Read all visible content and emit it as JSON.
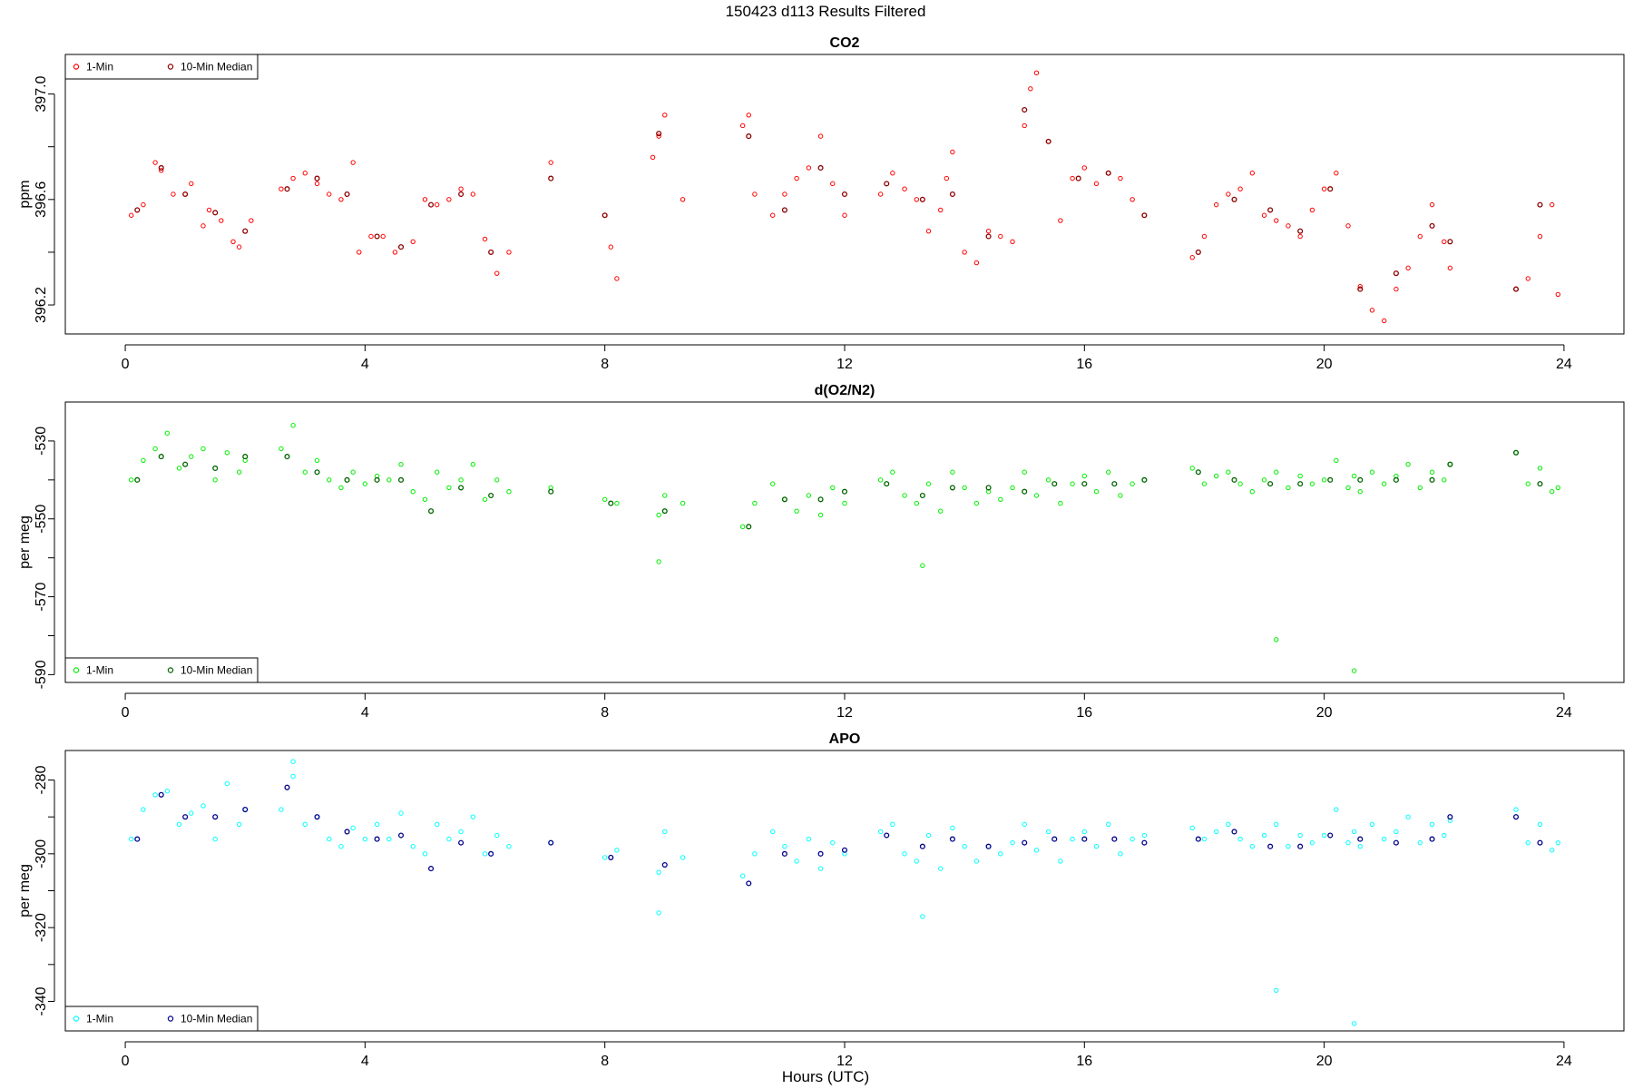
{
  "figure": {
    "title": "150423   d113   Results Filtered",
    "xlabel": "Hours (UTC)"
  },
  "chart_data": [
    {
      "type": "scatter",
      "title": "CO2",
      "ylabel": "ppm",
      "xlim": [
        -1.0,
        25.0
      ],
      "ylim": [
        396.09,
        397.15
      ],
      "xticks": [
        0,
        4,
        8,
        12,
        16,
        20,
        24
      ],
      "yticks": [
        396.2,
        396.6,
        397.0
      ],
      "ytick_labels": [
        "396.2",
        "396.6",
        "397.0"
      ],
      "legend": {
        "position": "top-left",
        "entries": [
          "1-Min",
          "10-Min Median"
        ]
      },
      "colors": {
        "one_min": "#ff0000",
        "median": "#8b0000"
      },
      "series": [
        {
          "name": "1-Min",
          "x": [
            0.1,
            0.3,
            0.5,
            0.6,
            0.8,
            1.0,
            1.1,
            1.3,
            1.4,
            1.6,
            1.8,
            1.9,
            2.1,
            2.6,
            2.8,
            3.0,
            3.2,
            3.4,
            3.6,
            3.8,
            3.9,
            4.1,
            4.3,
            4.5,
            4.8,
            5.0,
            5.2,
            5.4,
            5.6,
            5.8,
            6.0,
            6.2,
            6.4,
            7.1,
            8.0,
            8.1,
            8.2,
            8.8,
            8.9,
            9.0,
            9.3,
            10.3,
            10.4,
            10.5,
            10.8,
            11.0,
            11.2,
            11.4,
            11.6,
            11.8,
            12.0,
            12.6,
            12.8,
            13.0,
            13.2,
            13.4,
            13.6,
            13.7,
            13.8,
            14.0,
            14.2,
            14.4,
            14.6,
            14.8,
            15.0,
            15.1,
            15.2,
            15.4,
            15.6,
            15.8,
            16.0,
            16.2,
            16.4,
            16.6,
            16.8,
            17.0,
            17.8,
            18.0,
            18.2,
            18.4,
            18.6,
            18.8,
            19.0,
            19.2,
            19.4,
            19.6,
            19.8,
            20.0,
            20.2,
            20.4,
            20.6,
            20.8,
            21.0,
            21.2,
            21.4,
            21.6,
            21.8,
            22.0,
            22.1,
            23.2,
            23.4,
            23.6,
            23.8,
            23.9
          ],
          "y": [
            396.54,
            396.58,
            396.74,
            396.71,
            396.62,
            396.62,
            396.66,
            396.5,
            396.56,
            396.52,
            396.44,
            396.42,
            396.52,
            396.64,
            396.68,
            396.7,
            396.66,
            396.62,
            396.6,
            396.74,
            396.4,
            396.46,
            396.46,
            396.4,
            396.44,
            396.6,
            396.58,
            396.6,
            396.64,
            396.62,
            396.45,
            396.32,
            396.4,
            396.74,
            396.54,
            396.42,
            396.3,
            396.76,
            396.84,
            396.92,
            396.6,
            396.88,
            396.92,
            396.62,
            396.54,
            396.62,
            396.68,
            396.72,
            396.84,
            396.66,
            396.54,
            396.62,
            396.7,
            396.64,
            396.6,
            396.48,
            396.56,
            396.68,
            396.78,
            396.4,
            396.36,
            396.48,
            396.46,
            396.44,
            396.88,
            397.02,
            397.08,
            396.82,
            396.52,
            396.68,
            396.72,
            396.66,
            396.7,
            396.68,
            396.6,
            396.54,
            396.38,
            396.46,
            396.58,
            396.62,
            396.64,
            396.7,
            396.54,
            396.52,
            396.5,
            396.46,
            396.56,
            396.64,
            396.7,
            396.5,
            396.27,
            396.18,
            396.14,
            396.26,
            396.34,
            396.46,
            396.58,
            396.44,
            396.34,
            396.26,
            396.3,
            396.46,
            396.58,
            396.24
          ],
          "marker": "open-circle"
        },
        {
          "name": "10-Min Median",
          "x": [
            0.2,
            0.6,
            1.0,
            1.5,
            2.0,
            2.7,
            3.2,
            3.7,
            4.2,
            4.6,
            5.1,
            5.6,
            6.1,
            7.1,
            8.0,
            8.9,
            10.4,
            11.0,
            11.6,
            12.0,
            12.7,
            13.3,
            13.8,
            14.4,
            15.0,
            15.4,
            15.9,
            16.4,
            17.0,
            17.9,
            18.5,
            19.1,
            19.6,
            20.1,
            20.6,
            21.2,
            21.8,
            22.1,
            23.2,
            23.6
          ],
          "y": [
            396.56,
            396.72,
            396.62,
            396.55,
            396.48,
            396.64,
            396.68,
            396.62,
            396.46,
            396.42,
            396.58,
            396.62,
            396.4,
            396.68,
            396.54,
            396.85,
            396.84,
            396.56,
            396.72,
            396.62,
            396.66,
            396.6,
            396.62,
            396.46,
            396.94,
            396.82,
            396.68,
            396.7,
            396.54,
            396.4,
            396.6,
            396.56,
            396.48,
            396.64,
            396.26,
            396.32,
            396.5,
            396.44,
            396.26,
            396.58
          ],
          "marker": "open-circle"
        }
      ]
    },
    {
      "type": "scatter",
      "title": "d(O2/N2)",
      "ylabel": "per meg",
      "xlim": [
        -1.0,
        25.0
      ],
      "ylim": [
        -592.0,
        -520.0
      ],
      "xticks": [
        0,
        4,
        8,
        12,
        16,
        20,
        24
      ],
      "yticks": [
        -590,
        -570,
        -550,
        -530
      ],
      "ytick_labels": [
        "-590",
        "-570",
        "-550",
        "-530"
      ],
      "legend": {
        "position": "bottom-left",
        "entries": [
          "1-Min",
          "10-Min Median"
        ]
      },
      "colors": {
        "one_min": "#00ee00",
        "median": "#006400"
      },
      "series": [
        {
          "name": "1-Min",
          "x": [
            0.1,
            0.3,
            0.5,
            0.7,
            0.9,
            1.1,
            1.3,
            1.5,
            1.7,
            1.9,
            2.0,
            2.6,
            2.8,
            3.0,
            3.2,
            3.4,
            3.6,
            3.8,
            4.0,
            4.2,
            4.4,
            4.6,
            4.8,
            5.0,
            5.2,
            5.4,
            5.6,
            5.8,
            6.0,
            6.2,
            6.4,
            7.1,
            8.0,
            8.2,
            8.9,
            9.0,
            9.3,
            10.3,
            10.5,
            10.8,
            11.0,
            11.2,
            11.4,
            11.6,
            11.8,
            12.0,
            12.6,
            12.8,
            13.0,
            13.2,
            13.4,
            13.6,
            13.8,
            14.0,
            14.2,
            14.4,
            14.6,
            14.8,
            15.0,
            15.2,
            15.4,
            15.6,
            15.8,
            16.0,
            16.2,
            16.4,
            16.6,
            16.8,
            17.0,
            17.8,
            18.0,
            18.2,
            18.4,
            18.6,
            18.8,
            19.0,
            19.2,
            19.4,
            19.6,
            19.8,
            20.0,
            20.2,
            20.4,
            20.5,
            20.6,
            20.8,
            21.0,
            21.2,
            21.4,
            21.6,
            21.8,
            22.0,
            22.1,
            23.2,
            23.4,
            23.6,
            23.8,
            23.9,
            19.2,
            20.5,
            8.9,
            13.3,
            9.0
          ],
          "y": [
            -540,
            -535,
            -532,
            -528,
            -537,
            -534,
            -532,
            -540,
            -533,
            -538,
            -535,
            -532,
            -526,
            -538,
            -535,
            -540,
            -542,
            -538,
            -541,
            -539,
            -540,
            -536,
            -543,
            -545,
            -538,
            -542,
            -540,
            -536,
            -545,
            -540,
            -543,
            -542,
            -545,
            -546,
            -549,
            -544,
            -546,
            -552,
            -546,
            -541,
            -545,
            -548,
            -544,
            -549,
            -542,
            -546,
            -540,
            -538,
            -544,
            -546,
            -541,
            -548,
            -538,
            -542,
            -546,
            -543,
            -545,
            -542,
            -538,
            -544,
            -540,
            -546,
            -541,
            -539,
            -543,
            -538,
            -544,
            -541,
            -540,
            -537,
            -541,
            -539,
            -538,
            -541,
            -543,
            -540,
            -538,
            -542,
            -539,
            -541,
            -540,
            -535,
            -542,
            -539,
            -543,
            -538,
            -541,
            -539,
            -536,
            -542,
            -538,
            -540,
            -536,
            -533,
            -541,
            -537,
            -543,
            -542,
            -581,
            -589,
            -561,
            -562,
            -548
          ],
          "marker": "open-circle"
        },
        {
          "name": "10-Min Median",
          "x": [
            0.2,
            0.6,
            1.0,
            1.5,
            2.0,
            2.7,
            3.2,
            3.7,
            4.2,
            4.6,
            5.1,
            5.6,
            6.1,
            7.1,
            8.1,
            9.0,
            10.4,
            11.0,
            11.6,
            12.0,
            12.7,
            13.3,
            13.8,
            14.4,
            15.0,
            15.5,
            16.0,
            16.5,
            17.0,
            17.9,
            18.5,
            19.1,
            19.6,
            20.1,
            20.6,
            21.2,
            21.8,
            22.1,
            23.2,
            23.6
          ],
          "y": [
            -540,
            -534,
            -536,
            -537,
            -534,
            -534,
            -538,
            -540,
            -540,
            -540,
            -548,
            -542,
            -544,
            -543,
            -546,
            -548,
            -552,
            -545,
            -545,
            -543,
            -541,
            -544,
            -542,
            -542,
            -543,
            -541,
            -541,
            -541,
            -540,
            -538,
            -540,
            -541,
            -541,
            -540,
            -540,
            -540,
            -540,
            -536,
            -533,
            -541
          ],
          "marker": "open-circle"
        }
      ]
    },
    {
      "type": "scatter",
      "title": "APO",
      "ylabel": "per meg",
      "xlim": [
        -1.0,
        25.0
      ],
      "ylim": [
        -348.0,
        -272.0
      ],
      "xticks": [
        0,
        4,
        8,
        12,
        16,
        20,
        24
      ],
      "yticks": [
        -340,
        -320,
        -300,
        -280
      ],
      "ytick_labels": [
        "-340",
        "-320",
        "-300",
        "-280"
      ],
      "legend": {
        "position": "bottom-left",
        "entries": [
          "1-Min",
          "10-Min Median"
        ]
      },
      "colors": {
        "one_min": "#00ffff",
        "median": "#00008b"
      },
      "series": [
        {
          "name": "1-Min",
          "x": [
            0.1,
            0.3,
            0.5,
            0.7,
            0.9,
            1.1,
            1.3,
            1.5,
            1.7,
            1.9,
            2.0,
            2.6,
            2.8,
            3.0,
            3.2,
            3.4,
            3.6,
            3.8,
            4.0,
            4.2,
            4.4,
            4.6,
            4.8,
            5.0,
            5.2,
            5.4,
            5.6,
            5.8,
            6.0,
            6.2,
            6.4,
            7.1,
            8.0,
            8.2,
            8.9,
            9.0,
            9.3,
            10.3,
            10.5,
            10.8,
            11.0,
            11.2,
            11.4,
            11.6,
            11.8,
            12.0,
            12.6,
            12.8,
            13.0,
            13.2,
            13.4,
            13.6,
            13.8,
            14.0,
            14.2,
            14.4,
            14.6,
            14.8,
            15.0,
            15.2,
            15.4,
            15.6,
            15.8,
            16.0,
            16.2,
            16.4,
            16.6,
            16.8,
            17.0,
            17.8,
            18.0,
            18.2,
            18.4,
            18.6,
            18.8,
            19.0,
            19.2,
            19.4,
            19.6,
            19.8,
            20.0,
            20.2,
            20.4,
            20.5,
            20.6,
            20.8,
            21.0,
            21.2,
            21.4,
            21.6,
            21.8,
            22.0,
            22.1,
            23.2,
            23.4,
            23.6,
            23.8,
            23.9,
            19.2,
            20.5,
            8.9,
            13.3,
            2.8
          ],
          "y": [
            -296,
            -288,
            -284,
            -283,
            -292,
            -289,
            -287,
            -296,
            -281,
            -292,
            -288,
            -288,
            -279,
            -292,
            -290,
            -296,
            -298,
            -293,
            -296,
            -292,
            -296,
            -289,
            -298,
            -300,
            -292,
            -296,
            -294,
            -290,
            -300,
            -295,
            -298,
            -297,
            -301,
            -299,
            -305,
            -294,
            -301,
            -306,
            -300,
            -294,
            -298,
            -302,
            -296,
            -304,
            -297,
            -300,
            -294,
            -292,
            -300,
            -302,
            -295,
            -304,
            -293,
            -298,
            -302,
            -298,
            -300,
            -297,
            -292,
            -299,
            -294,
            -302,
            -296,
            -294,
            -298,
            -292,
            -300,
            -296,
            -295,
            -293,
            -296,
            -294,
            -292,
            -296,
            -298,
            -295,
            -292,
            -298,
            -295,
            -297,
            -295,
            -288,
            -297,
            -294,
            -298,
            -292,
            -296,
            -294,
            -290,
            -297,
            -292,
            -295,
            -291,
            -288,
            -297,
            -292,
            -299,
            -297,
            -337,
            -346,
            -316,
            -317,
            -275
          ],
          "marker": "open-circle"
        },
        {
          "name": "10-Min Median",
          "x": [
            0.2,
            0.6,
            1.0,
            1.5,
            2.0,
            2.7,
            3.2,
            3.7,
            4.2,
            4.6,
            5.1,
            5.6,
            6.1,
            7.1,
            8.1,
            9.0,
            10.4,
            11.0,
            11.6,
            12.0,
            12.7,
            13.3,
            13.8,
            14.4,
            15.0,
            15.5,
            16.0,
            16.5,
            17.0,
            17.9,
            18.5,
            19.1,
            19.6,
            20.1,
            20.6,
            21.2,
            21.8,
            22.1,
            23.2,
            23.6
          ],
          "y": [
            -296,
            -284,
            -290,
            -290,
            -288,
            -282,
            -290,
            -294,
            -296,
            -295,
            -304,
            -297,
            -300,
            -297,
            -301,
            -303,
            -308,
            -300,
            -300,
            -299,
            -295,
            -298,
            -296,
            -298,
            -297,
            -296,
            -296,
            -296,
            -297,
            -296,
            -294,
            -298,
            -298,
            -295,
            -296,
            -297,
            -296,
            -290,
            -290,
            -297
          ],
          "marker": "open-circle"
        }
      ]
    }
  ]
}
